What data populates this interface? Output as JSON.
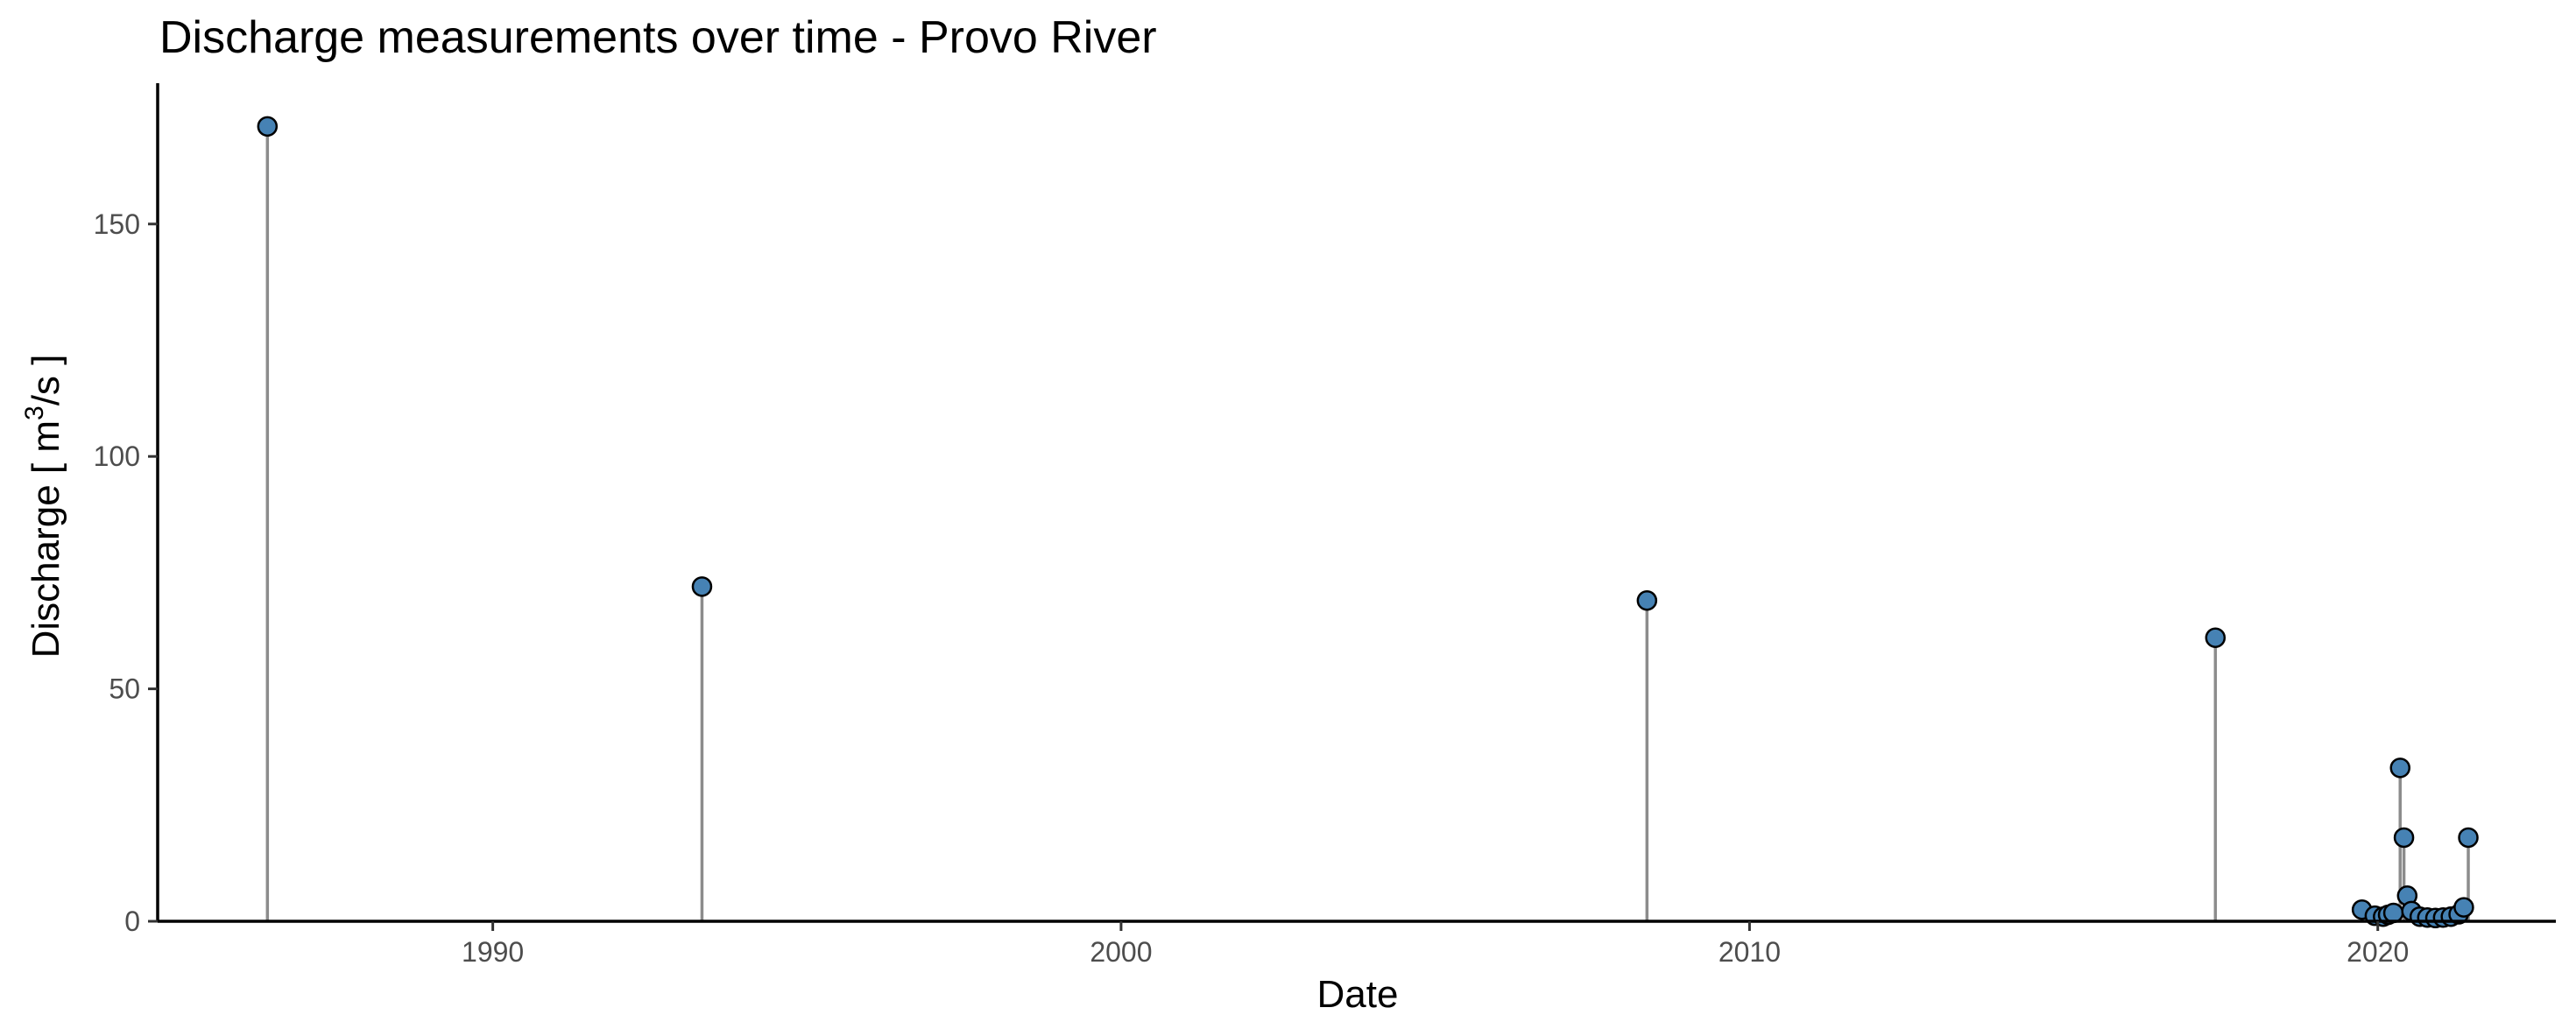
{
  "chart_data": {
    "type": "scatter",
    "style": "lollipop",
    "title": "Discharge measurements over time - Provo River",
    "xlabel": "Date",
    "ylabel_prefix": "Discharge  [ m",
    "ylabel_sup": "3",
    "ylabel_suffix": "/s ]",
    "xlim": [
      "1984-09-01",
      "2022-11-01"
    ],
    "ylim": [
      0,
      185
    ],
    "x_ticks": [
      {
        "date": "1990-01-01",
        "label": "1990"
      },
      {
        "date": "2000-01-01",
        "label": "2000"
      },
      {
        "date": "2010-01-01",
        "label": "2010"
      },
      {
        "date": "2020-01-01",
        "label": "2020"
      }
    ],
    "y_ticks": [
      {
        "value": 0,
        "label": "0"
      },
      {
        "value": 50,
        "label": "50"
      },
      {
        "value": 100,
        "label": "100"
      },
      {
        "value": 150,
        "label": "150"
      }
    ],
    "grid": false,
    "legend": "none",
    "point_color": "#4682B4",
    "stem_color": "#8C8C8C",
    "points": [
      {
        "date": "1986-06-01",
        "value": 171
      },
      {
        "date": "1993-05-01",
        "value": 72
      },
      {
        "date": "2008-05-15",
        "value": 69
      },
      {
        "date": "2017-06-01",
        "value": 61
      },
      {
        "date": "2019-10-01",
        "value": 2.5
      },
      {
        "date": "2019-12-15",
        "value": 1.2
      },
      {
        "date": "2020-02-01",
        "value": 1.0
      },
      {
        "date": "2020-03-01",
        "value": 1.4
      },
      {
        "date": "2020-04-01",
        "value": 1.8
      },
      {
        "date": "2020-05-10",
        "value": 33
      },
      {
        "date": "2020-06-01",
        "value": 18
      },
      {
        "date": "2020-06-20",
        "value": 5.5
      },
      {
        "date": "2020-07-15",
        "value": 2.2
      },
      {
        "date": "2020-09-01",
        "value": 1.0
      },
      {
        "date": "2020-10-15",
        "value": 0.8
      },
      {
        "date": "2020-12-01",
        "value": 0.7
      },
      {
        "date": "2021-01-15",
        "value": 0.8
      },
      {
        "date": "2021-03-01",
        "value": 1.0
      },
      {
        "date": "2021-04-15",
        "value": 1.5
      },
      {
        "date": "2021-05-15",
        "value": 3.0
      },
      {
        "date": "2021-06-10",
        "value": 18
      }
    ]
  }
}
